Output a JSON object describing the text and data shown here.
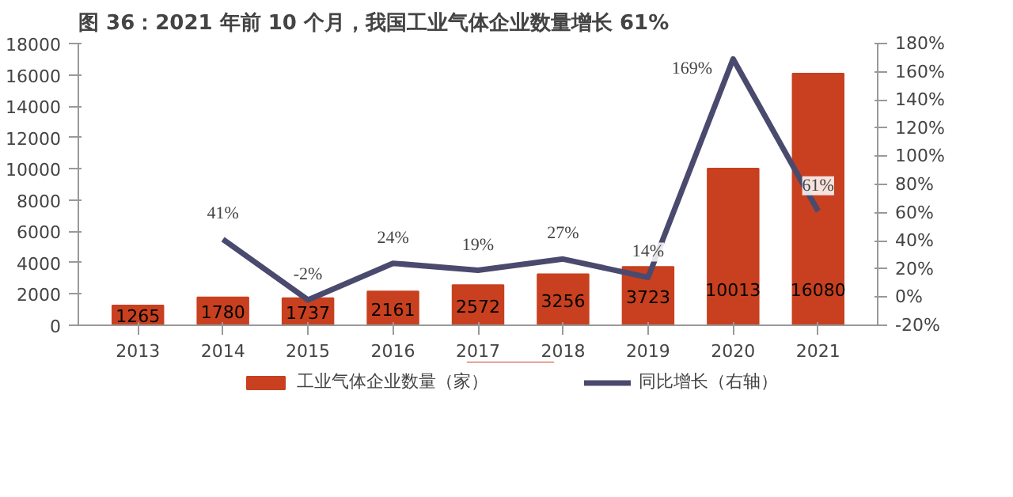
{
  "chart_data": {
    "type": "bar",
    "title": "图 36：2021 年前 10 个月，我国工业气体企业数量增长 61%",
    "categories": [
      "2013",
      "2014",
      "2015",
      "2016",
      "2017",
      "2018",
      "2019",
      "2020",
      "2021"
    ],
    "series": [
      {
        "name": "工业气体企业数量（家）",
        "color": "#c8401f",
        "values": [
          1265,
          1780,
          1737,
          2161,
          2572,
          3256,
          3723,
          10013,
          16080
        ],
        "value_labels": [
          "1265",
          "1780",
          "1737",
          "2161",
          "2572",
          "3256",
          "3723",
          "10013",
          "16080"
        ]
      },
      {
        "name": "同比增长（右轴）",
        "type": "line",
        "axis": "y2",
        "color": "#4a4a6e",
        "values": [
          null,
          41,
          -2,
          24,
          19,
          27,
          14,
          169,
          61
        ],
        "value_labels": [
          null,
          "41%",
          "-2%",
          "24%",
          "19%",
          "27%",
          "14%",
          "169%",
          "61%"
        ]
      }
    ],
    "ylim": [
      0,
      18000
    ],
    "yticks": [
      0,
      2000,
      4000,
      6000,
      8000,
      10000,
      12000,
      14000,
      16000,
      18000
    ],
    "y2lim": [
      -20,
      180
    ],
    "y2ticks": [
      {
        "value": -20,
        "label": "-20%"
      },
      {
        "value": 0,
        "label": "0%"
      },
      {
        "value": 20,
        "label": "20%"
      },
      {
        "value": 40,
        "label": "40%"
      },
      {
        "value": 60,
        "label": "60%"
      },
      {
        "value": 80,
        "label": "80%"
      },
      {
        "value": 100,
        "label": "100%"
      },
      {
        "value": 120,
        "label": "120%"
      },
      {
        "value": 140,
        "label": "140%"
      },
      {
        "value": 160,
        "label": "160%"
      },
      {
        "value": 180,
        "label": "180%"
      }
    ],
    "legend": "bottom",
    "grid": false,
    "marker": "none",
    "line_style": "solid"
  }
}
